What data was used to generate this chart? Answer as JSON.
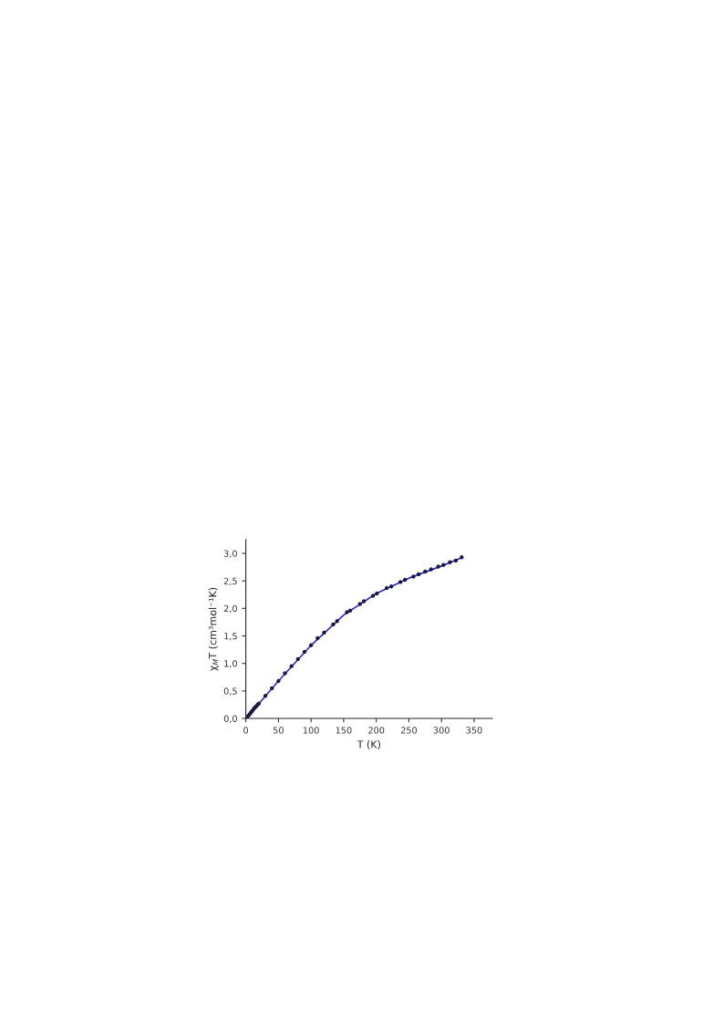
{
  "chart_data": {
    "type": "scatter",
    "xlabel": "T (K)",
    "ylabel": "χ$_{M}$T (cm³mol⁻¹K)",
    "xlim": [
      0,
      378
    ],
    "ylim": [
      0,
      3.25
    ],
    "xticks": [
      0,
      50,
      100,
      150,
      200,
      250,
      300,
      350
    ],
    "yticks": [
      {
        "value": 0,
        "label": "0,0"
      },
      {
        "value": 0.5,
        "label": "0,5"
      },
      {
        "value": 1.0,
        "label": "1,0"
      },
      {
        "value": 1.5,
        "label": "1,5"
      },
      {
        "value": 2.0,
        "label": "2,0"
      },
      {
        "value": 2.5,
        "label": "2,5"
      },
      {
        "value": 3.0,
        "label": "3,0"
      }
    ],
    "grid": false,
    "legend": false,
    "series": [
      {
        "type": "line",
        "color": "#2b2bd9",
        "marker": "none",
        "line_style": "solid",
        "x": [
          0,
          20,
          50,
          100,
          150,
          200,
          250,
          300,
          331
        ],
        "values": [
          0,
          0.27,
          0.68,
          1.33,
          1.88,
          2.27,
          2.55,
          2.77,
          2.92
        ]
      },
      {
        "color": "#1a1a40",
        "marker": "circle",
        "x": [
          2,
          4,
          6,
          8,
          10,
          12,
          14,
          16,
          18,
          20,
          30,
          40,
          50,
          60,
          70,
          80,
          90,
          100,
          110,
          120,
          134,
          140,
          155,
          160,
          175,
          181,
          195,
          201,
          216,
          223,
          237,
          244,
          257,
          265,
          275,
          284,
          295,
          303,
          313,
          322,
          331
        ],
        "values": [
          0.02,
          0.05,
          0.08,
          0.11,
          0.14,
          0.17,
          0.2,
          0.22,
          0.25,
          0.27,
          0.41,
          0.55,
          0.68,
          0.82,
          0.95,
          1.08,
          1.21,
          1.33,
          1.46,
          1.56,
          1.71,
          1.77,
          1.93,
          1.96,
          2.08,
          2.13,
          2.23,
          2.27,
          2.37,
          2.4,
          2.48,
          2.52,
          2.58,
          2.62,
          2.67,
          2.71,
          2.76,
          2.79,
          2.84,
          2.87,
          2.93
        ]
      }
    ]
  }
}
